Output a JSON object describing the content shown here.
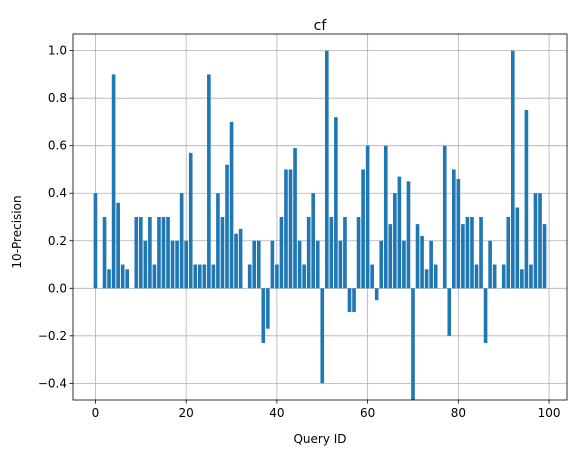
{
  "chart_data": {
    "type": "bar",
    "title": "cf",
    "xlabel": "Query ID",
    "ylabel": "10-Precision",
    "xlim": [
      -4.95,
      103.95
    ],
    "ylim": [
      -0.47,
      1.07
    ],
    "xticks": [
      0,
      20,
      40,
      60,
      80,
      100
    ],
    "yticks": [
      -0.4,
      -0.2,
      0.0,
      0.2,
      0.4,
      0.6,
      0.8,
      1.0
    ],
    "grid": true,
    "bar_color": "#1f77b4",
    "x": [
      0,
      1,
      2,
      3,
      4,
      5,
      6,
      7,
      8,
      9,
      10,
      11,
      12,
      13,
      14,
      15,
      16,
      17,
      18,
      19,
      20,
      21,
      22,
      23,
      24,
      25,
      26,
      27,
      28,
      29,
      30,
      31,
      32,
      33,
      34,
      35,
      36,
      37,
      38,
      39,
      40,
      41,
      42,
      43,
      44,
      45,
      46,
      47,
      48,
      49,
      50,
      51,
      52,
      53,
      54,
      55,
      56,
      57,
      58,
      59,
      60,
      61,
      62,
      63,
      64,
      65,
      66,
      67,
      68,
      69,
      70,
      71,
      72,
      73,
      74,
      75,
      76,
      77,
      78,
      79,
      80,
      81,
      82,
      83,
      84,
      85,
      86,
      87,
      88,
      89,
      90,
      91,
      92,
      93,
      94,
      95,
      96,
      97,
      98,
      99
    ],
    "values": [
      0.4,
      0.0,
      0.3,
      0.08,
      0.9,
      0.36,
      0.1,
      0.08,
      0.0,
      0.3,
      0.3,
      0.2,
      0.3,
      0.1,
      0.3,
      0.3,
      0.3,
      0.2,
      0.2,
      0.4,
      0.2,
      0.57,
      0.1,
      0.1,
      0.1,
      0.9,
      0.1,
      0.4,
      0.3,
      0.52,
      0.7,
      0.23,
      0.25,
      0.0,
      0.1,
      0.2,
      0.2,
      -0.23,
      -0.17,
      0.2,
      0.1,
      0.3,
      0.5,
      0.5,
      0.59,
      0.2,
      0.1,
      0.3,
      0.4,
      0.2,
      -0.4,
      1.0,
      0.3,
      0.72,
      0.2,
      0.3,
      -0.1,
      -0.1,
      0.3,
      0.5,
      0.6,
      0.1,
      -0.05,
      0.2,
      0.6,
      0.27,
      0.4,
      0.47,
      0.2,
      0.45,
      -0.47,
      0.27,
      0.22,
      0.08,
      0.2,
      0.1,
      0.0,
      0.6,
      -0.2,
      0.5,
      0.46,
      0.27,
      0.3,
      0.3,
      0.1,
      0.3,
      -0.23,
      0.2,
      0.1,
      0.0,
      0.1,
      0.3,
      1.0,
      0.34,
      0.08,
      0.75,
      0.1,
      0.4,
      0.4,
      0.27
    ]
  }
}
